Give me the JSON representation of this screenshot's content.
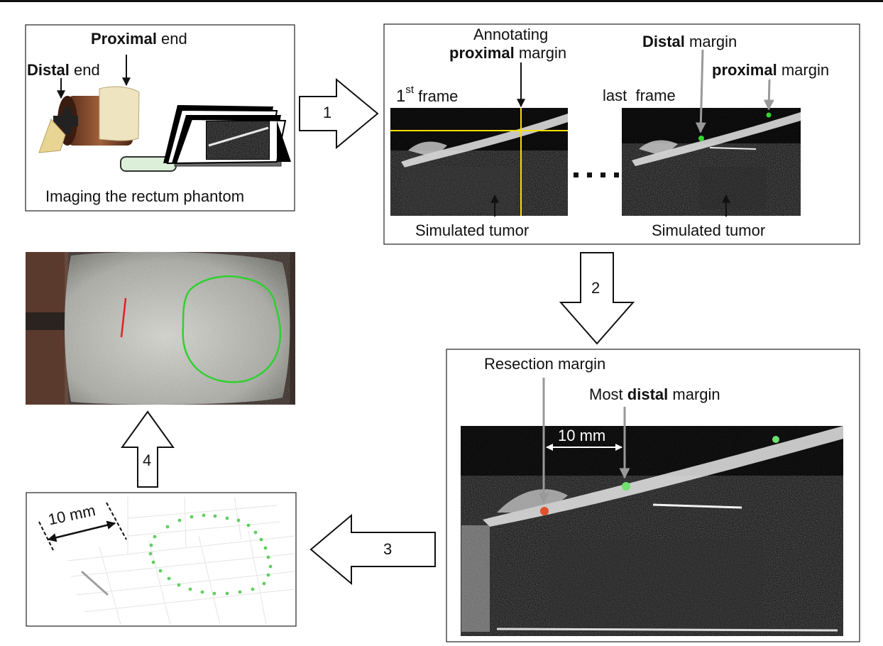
{
  "panel1": {
    "proximal_bold": "Proximal",
    "proximal_rest": " end",
    "distal_bold": "Distal",
    "distal_rest": " end",
    "caption": "Imaging the rectum phantom"
  },
  "panel2": {
    "first_frame_main": "1",
    "first_frame_sup": "st",
    "first_frame_rest": " frame",
    "annotating_line1": "Annotating",
    "annotating_bold": "proximal",
    "annotating_rest": " margin",
    "last_frame": "last  frame",
    "distal_bold": "Distal",
    "distal_rest": " margin",
    "proximal_bold": "proximal",
    "proximal_rest": " margin",
    "tumor_left": "Simulated tumor",
    "tumor_right": "Simulated tumor"
  },
  "panel3": {
    "resection": "Resection margin",
    "most_plain": "Most ",
    "most_bold": "distal",
    "most_rest": " margin",
    "dist_label": "10 mm"
  },
  "panel4": {
    "dist_label": "10 mm"
  },
  "arrows": {
    "step1": "1",
    "step2": "2",
    "step3": "3",
    "step4": "4"
  },
  "colors": {
    "annotation_yellow": "#f5e000",
    "margin_green": "#2fd62f",
    "resection_red": "#e0502a",
    "contour_green": "#2fd02f",
    "cut_red": "#e02020"
  }
}
